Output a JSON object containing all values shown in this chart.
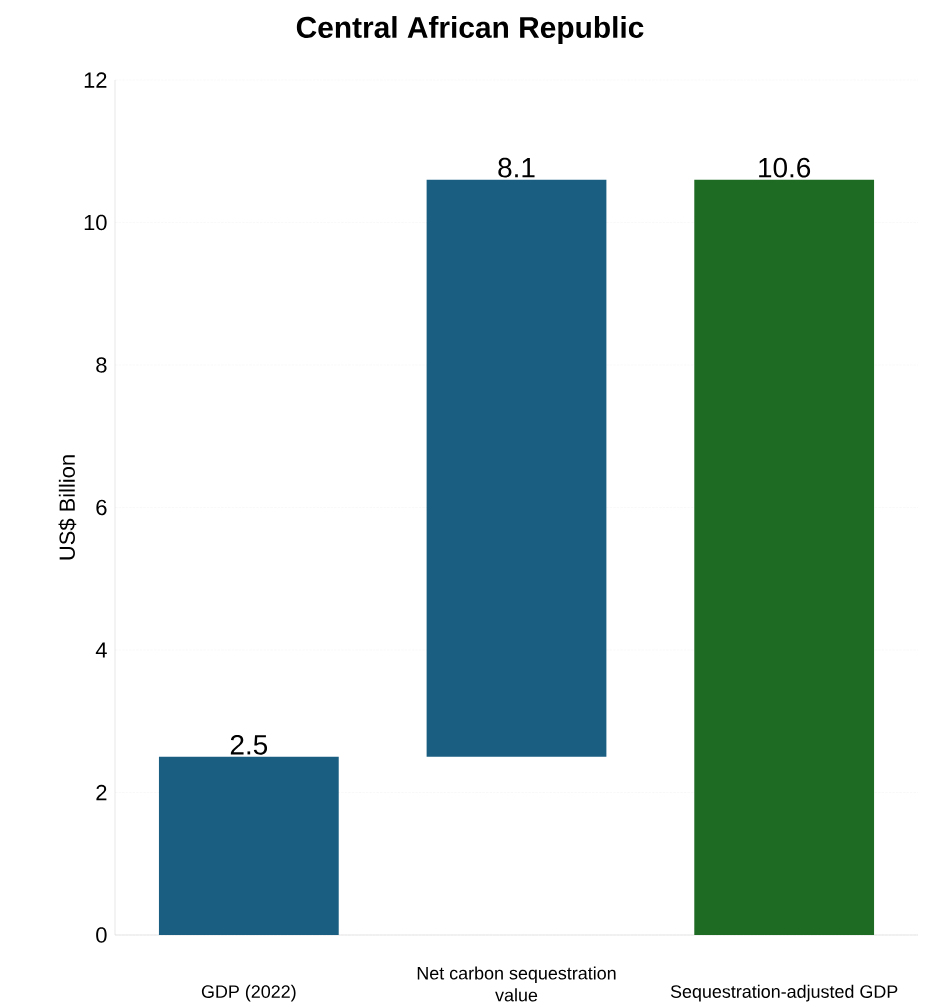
{
  "chart_data": {
    "type": "bar",
    "title": "Central African Republic",
    "ylabel": "US$ Billion",
    "categories": [
      "GDP (2022)",
      "Net carbon sequestration value",
      "Sequestration-adjusted GDP"
    ],
    "values": [
      2.5,
      8.1,
      10.6
    ],
    "base": [
      0,
      2.5,
      0
    ],
    "colors": [
      "#1a5f82",
      "#1a5f82",
      "#1e6b24"
    ],
    "ylim": [
      0,
      12
    ],
    "yticks": [
      0,
      2,
      4,
      6,
      8,
      10,
      12
    ],
    "grid": "y",
    "data_labels": true
  }
}
